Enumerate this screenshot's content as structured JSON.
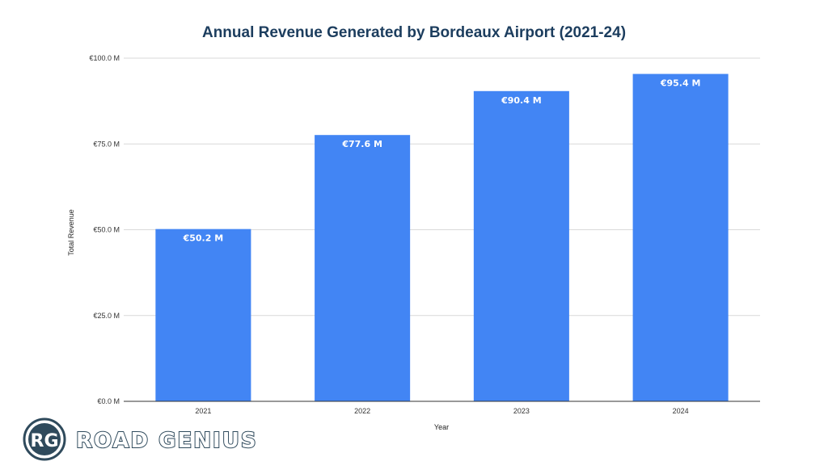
{
  "colors": {
    "bar": "#4285f4",
    "title": "#1c3d5e",
    "logo": "#2f4a5c"
  },
  "logo": {
    "monogram": "RG",
    "wordmark": "ROAD GENIUS"
  },
  "chart_data": {
    "type": "bar",
    "title": "Annual Revenue Generated by Bordeaux Airport (2021-24)",
    "xlabel": "Year",
    "ylabel": "Total Revenue",
    "categories": [
      "2021",
      "2022",
      "2023",
      "2024"
    ],
    "values": [
      50.2,
      77.6,
      90.4,
      95.4
    ],
    "data_labels": [
      "€50.2 M",
      "€77.6 M",
      "€90.4 M",
      "€95.4 M"
    ],
    "ylim": [
      0,
      100
    ],
    "yticks": [
      0,
      25,
      50,
      75,
      100
    ],
    "ytick_labels": [
      "€0.0 M",
      "€25.0 M",
      "€50.0 M",
      "€75.0 M",
      "€100.0 M"
    ],
    "grid": true,
    "legend": "none"
  }
}
